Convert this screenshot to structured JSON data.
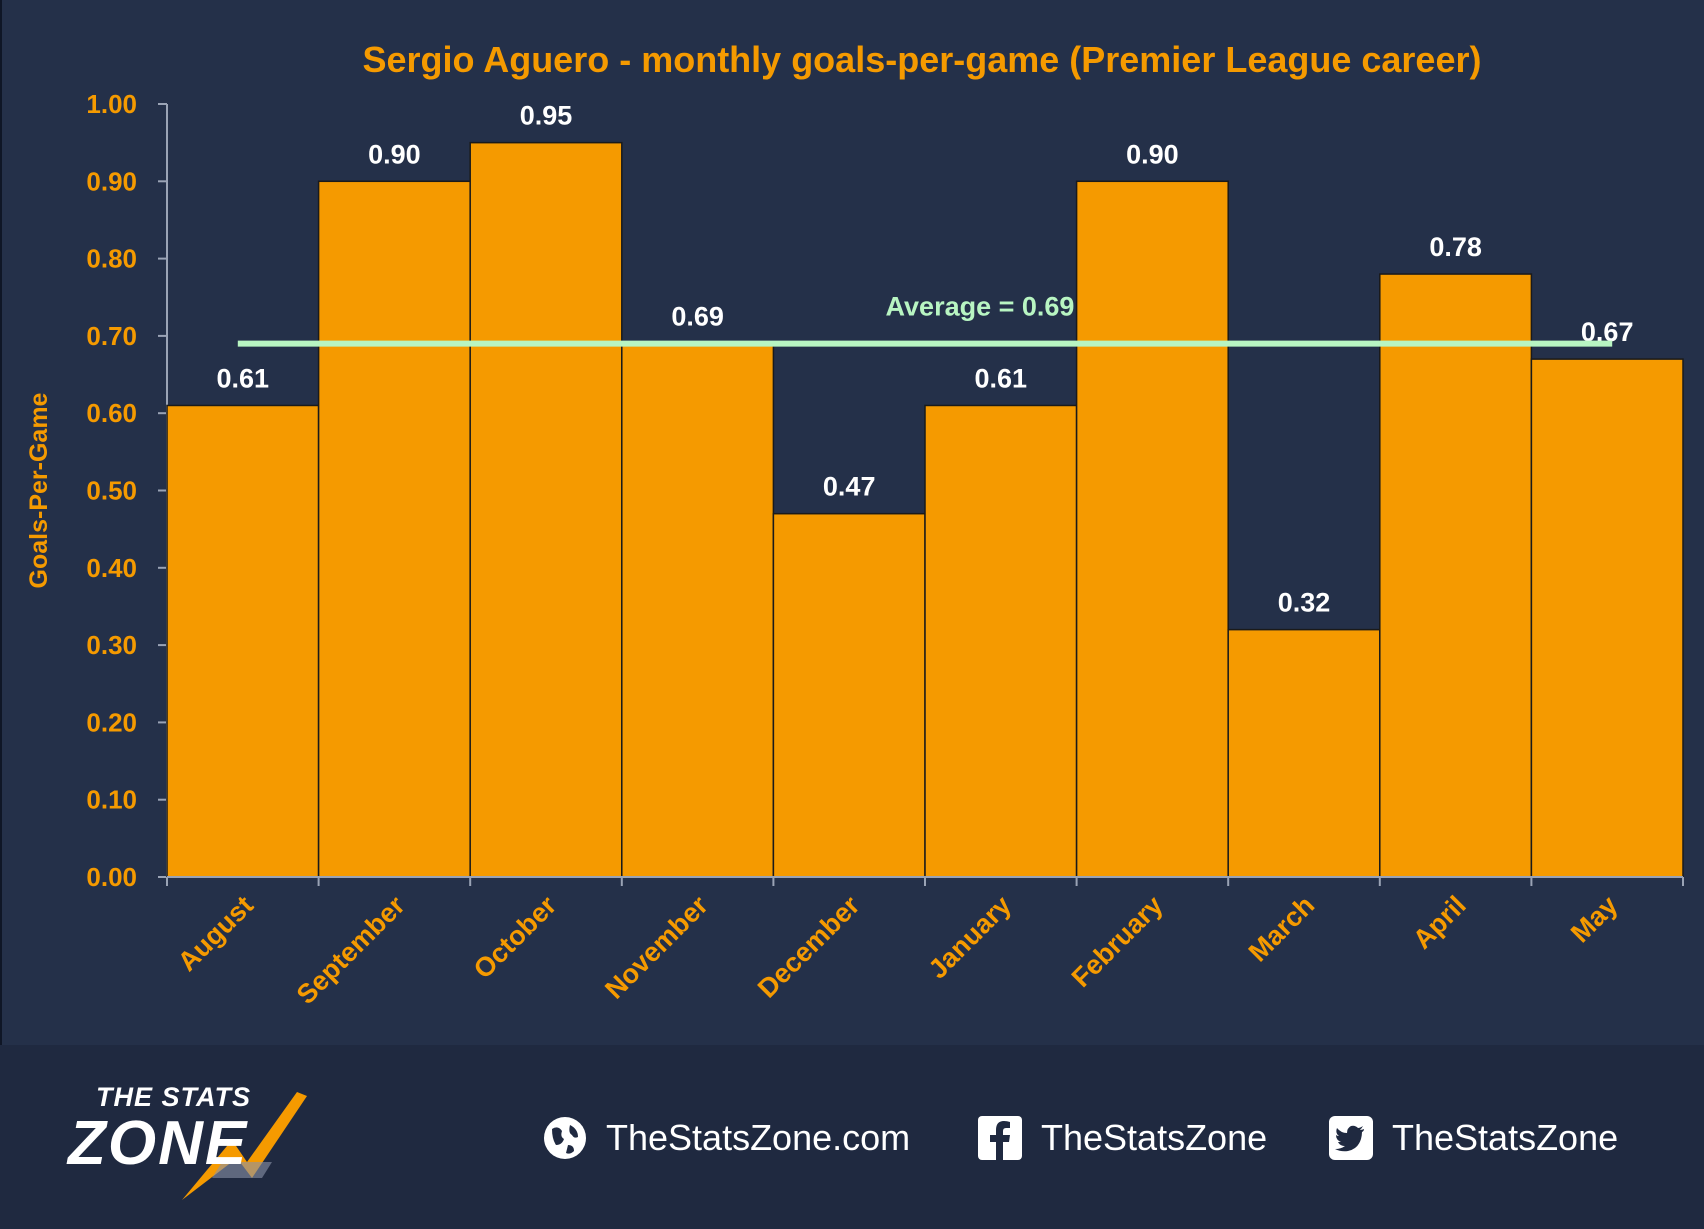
{
  "chart_data": {
    "type": "bar",
    "title": "Sergio Aguero - monthly goals-per-game (Premier League career)",
    "xlabel": "",
    "ylabel": "Goals-Per-Game",
    "categories": [
      "August",
      "September",
      "October",
      "November",
      "December",
      "January",
      "February",
      "March",
      "April",
      "May"
    ],
    "values": [
      0.61,
      0.9,
      0.95,
      0.69,
      0.47,
      0.61,
      0.9,
      0.32,
      0.78,
      0.67
    ],
    "value_labels": [
      "0.61",
      "0.90",
      "0.95",
      "0.69",
      "0.47",
      "0.61",
      "0.90",
      "0.32",
      "0.78",
      "0.67"
    ],
    "ylim": [
      0,
      1.0
    ],
    "yticks": [
      "0.00",
      "0.10",
      "0.20",
      "0.30",
      "0.40",
      "0.50",
      "0.60",
      "0.70",
      "0.80",
      "0.90",
      "1.00"
    ],
    "average": 0.69,
    "average_label": "Average = 0.69",
    "grid": false,
    "colors": {
      "bar": "#f59a00",
      "axis_text": "#f59a00",
      "title": "#f59a00",
      "average_line": "#b8f5c2",
      "value_label": "#ffffff"
    }
  },
  "footer": {
    "logo_top": "THE STATS",
    "logo_main": "ZONE",
    "website": "TheStatsZone.com",
    "facebook": "TheStatsZone",
    "twitter": "TheStatsZone",
    "icons": [
      "globe-icon",
      "facebook-icon",
      "twitter-icon"
    ]
  }
}
